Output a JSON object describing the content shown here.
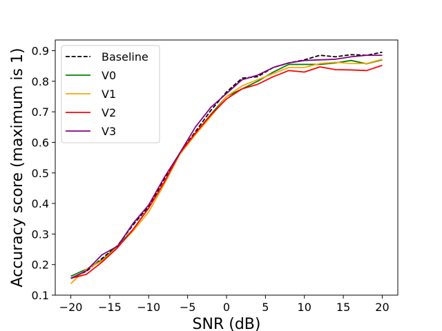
{
  "chart_data": {
    "type": "line",
    "title": "",
    "xlabel": "SNR (dB)",
    "ylabel": "Accuracy score (maximum is 1)",
    "xlim": [
      -22,
      22
    ],
    "ylim": [
      0.1,
      0.935
    ],
    "x_ticks": [
      -20,
      -15,
      -10,
      -5,
      0,
      5,
      10,
      15,
      20
    ],
    "x_tick_labels": [
      "−20",
      "−15",
      "−10",
      "−5",
      "0",
      "5",
      "10",
      "15",
      "20"
    ],
    "y_ticks": [
      0.1,
      0.2,
      0.3,
      0.4,
      0.5,
      0.6,
      0.7,
      0.8,
      0.9
    ],
    "y_tick_labels": [
      "0.1",
      "0.2",
      "0.3",
      "0.4",
      "0.5",
      "0.6",
      "0.7",
      "0.8",
      "0.9"
    ],
    "grid": false,
    "legend_position": "upper-left",
    "x": [
      -20,
      -18,
      -16,
      -14,
      -12,
      -10,
      -8,
      -6,
      -4,
      -2,
      0,
      2,
      4,
      6,
      8,
      10,
      12,
      14,
      16,
      18,
      20
    ],
    "series": [
      {
        "name": "Baseline",
        "color": "#000000",
        "dashed": true,
        "values": [
          0.155,
          0.178,
          0.22,
          0.262,
          0.33,
          0.39,
          0.48,
          0.565,
          0.635,
          0.705,
          0.765,
          0.81,
          0.815,
          0.845,
          0.86,
          0.87,
          0.885,
          0.88,
          0.887,
          0.885,
          0.895
        ]
      },
      {
        "name": "V0",
        "color": "#008000",
        "dashed": false,
        "values": [
          0.162,
          0.185,
          0.215,
          0.26,
          0.315,
          0.385,
          0.468,
          0.565,
          0.63,
          0.692,
          0.75,
          0.775,
          0.8,
          0.83,
          0.855,
          0.855,
          0.855,
          0.86,
          0.868,
          0.857,
          0.87
        ]
      },
      {
        "name": "V1",
        "color": "#FFA500",
        "dashed": false,
        "values": [
          0.138,
          0.185,
          0.212,
          0.258,
          0.31,
          0.372,
          0.463,
          0.56,
          0.625,
          0.685,
          0.75,
          0.785,
          0.805,
          0.825,
          0.845,
          0.845,
          0.858,
          0.862,
          0.858,
          0.858,
          0.872
        ]
      },
      {
        "name": "V2",
        "color": "#FF0000",
        "dashed": false,
        "values": [
          0.155,
          0.168,
          0.208,
          0.255,
          0.315,
          0.385,
          0.47,
          0.565,
          0.63,
          0.69,
          0.742,
          0.775,
          0.79,
          0.815,
          0.835,
          0.83,
          0.847,
          0.838,
          0.837,
          0.835,
          0.852
        ]
      },
      {
        "name": "V3",
        "color": "#800080",
        "dashed": false,
        "values": [
          0.155,
          0.18,
          0.232,
          0.26,
          0.335,
          0.395,
          0.485,
          0.565,
          0.65,
          0.715,
          0.76,
          0.805,
          0.82,
          0.845,
          0.86,
          0.868,
          0.87,
          0.872,
          0.88,
          0.885,
          0.885
        ]
      }
    ]
  }
}
